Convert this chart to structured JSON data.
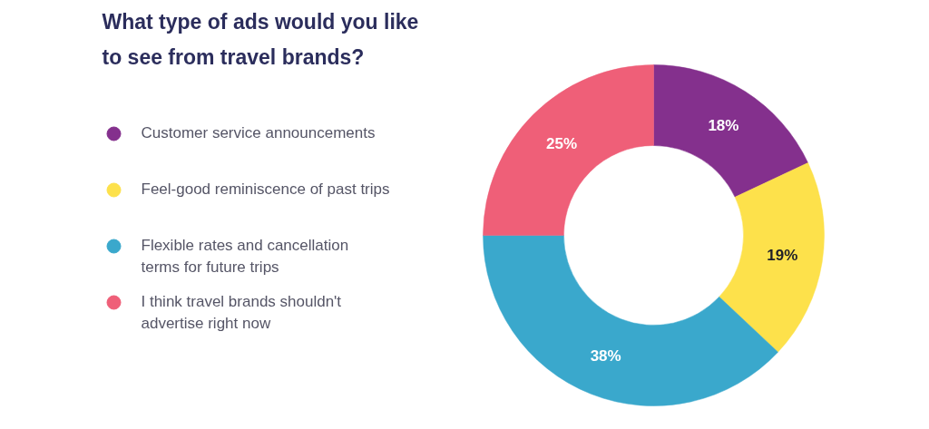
{
  "chart_data": {
    "type": "donut",
    "title": "What type of ads would you like to see from travel brands?",
    "categories": [
      "Customer service announcements",
      "Feel-good reminiscence of past trips",
      "Flexible rates and cancellation terms for future trips",
      "I think travel brands shouldn't advertise right now"
    ],
    "values": [
      18,
      19,
      38,
      25
    ],
    "colors": [
      "#84308d",
      "#fde14b",
      "#3aa8cc",
      "#ef5f78"
    ],
    "value_labels": [
      "18%",
      "19%",
      "38%",
      "25%"
    ],
    "legend": "left"
  }
}
